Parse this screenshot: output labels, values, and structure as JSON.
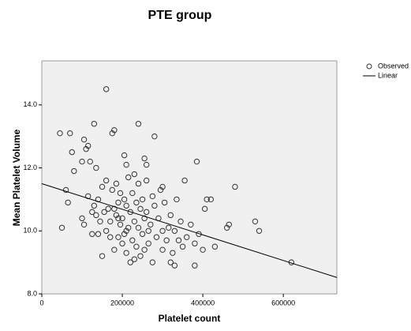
{
  "chart_data": {
    "type": "scatter",
    "title": "PTE group",
    "x_label": "Platelet count",
    "y_label": "Mean Platelet Volume",
    "xlim": [
      0,
      733000
    ],
    "ylim": [
      8,
      15.4
    ],
    "xticks": [
      0,
      200000,
      400000,
      600000
    ],
    "yticks": [
      {
        "value": 8,
        "label": "8.0"
      },
      {
        "value": 10,
        "label": "10.0"
      },
      {
        "value": 12,
        "label": "12.0"
      },
      {
        "value": 14,
        "label": "14.0"
      }
    ],
    "series": [
      {
        "name": "Observed",
        "type": "scatter",
        "color": "#333333",
        "x": [
          45000,
          70000,
          50000,
          60000,
          65000,
          75000,
          80000,
          100000,
          105000,
          110000,
          115000,
          120000,
          130000,
          135000,
          160000,
          175000,
          180000,
          240000,
          280000,
          385000,
          255000,
          205000,
          210000,
          260000,
          480000,
          410000,
          420000,
          405000,
          530000,
          540000,
          460000,
          465000,
          620000,
          430000,
          380000,
          330000,
          320000,
          100000,
          105000,
          115000,
          125000,
          130000,
          135000,
          140000,
          145000,
          150000,
          150000,
          155000,
          160000,
          160000,
          165000,
          170000,
          175000,
          180000,
          185000,
          185000,
          190000,
          190000,
          195000,
          195000,
          200000,
          200000,
          205000,
          205000,
          210000,
          210000,
          215000,
          215000,
          220000,
          220000,
          225000,
          225000,
          230000,
          230000,
          235000,
          235000,
          240000,
          240000,
          245000,
          245000,
          250000,
          250000,
          255000,
          255000,
          260000,
          260000,
          265000,
          270000,
          275000,
          275000,
          280000,
          285000,
          290000,
          295000,
          300000,
          300000,
          305000,
          310000,
          315000,
          320000,
          325000,
          330000,
          335000,
          340000,
          345000,
          350000,
          355000,
          360000,
          370000,
          380000,
          390000,
          400000,
          170000,
          180000,
          140000,
          125000,
          265000,
          300000,
          230000,
          210000,
          190000
        ],
        "values": [
          13.1,
          13.1,
          10.1,
          11.3,
          10.9,
          12.5,
          11.9,
          12.2,
          12.9,
          12.6,
          12.7,
          12.2,
          13.4,
          12.0,
          14.5,
          13.1,
          13.2,
          13.4,
          13.0,
          12.2,
          12.3,
          12.4,
          12.1,
          12.1,
          11.4,
          11.0,
          11.0,
          10.7,
          10.3,
          10.0,
          10.1,
          10.2,
          9.0,
          9.5,
          8.9,
          8.9,
          9.0,
          10.4,
          10.2,
          11.1,
          10.6,
          10.8,
          10.5,
          9.9,
          10.3,
          11.4,
          9.2,
          10.6,
          10.0,
          11.6,
          10.7,
          9.8,
          11.3,
          9.4,
          10.5,
          11.5,
          9.8,
          10.9,
          10.2,
          11.2,
          9.6,
          10.4,
          11.0,
          9.9,
          10.8,
          9.3,
          10.1,
          11.7,
          9.0,
          10.6,
          11.2,
          9.7,
          10.3,
          11.8,
          9.5,
          10.9,
          10.1,
          11.5,
          9.2,
          10.7,
          9.9,
          11.0,
          10.4,
          9.4,
          10.6,
          11.6,
          9.6,
          10.2,
          9.0,
          11.1,
          10.8,
          9.8,
          10.4,
          11.3,
          9.4,
          10.0,
          10.9,
          9.7,
          10.1,
          10.5,
          9.3,
          10.0,
          11.0,
          9.7,
          10.3,
          9.5,
          11.6,
          9.8,
          10.2,
          9.6,
          9.9,
          9.4,
          10.3,
          10.7,
          11.0,
          9.9,
          10.0,
          11.4,
          9.1,
          10.0,
          10.4
        ]
      },
      {
        "name": "Linear",
        "type": "line",
        "color": "#000000",
        "x": [
          0,
          733000
        ],
        "values": [
          11.5,
          8.52
        ]
      }
    ]
  }
}
